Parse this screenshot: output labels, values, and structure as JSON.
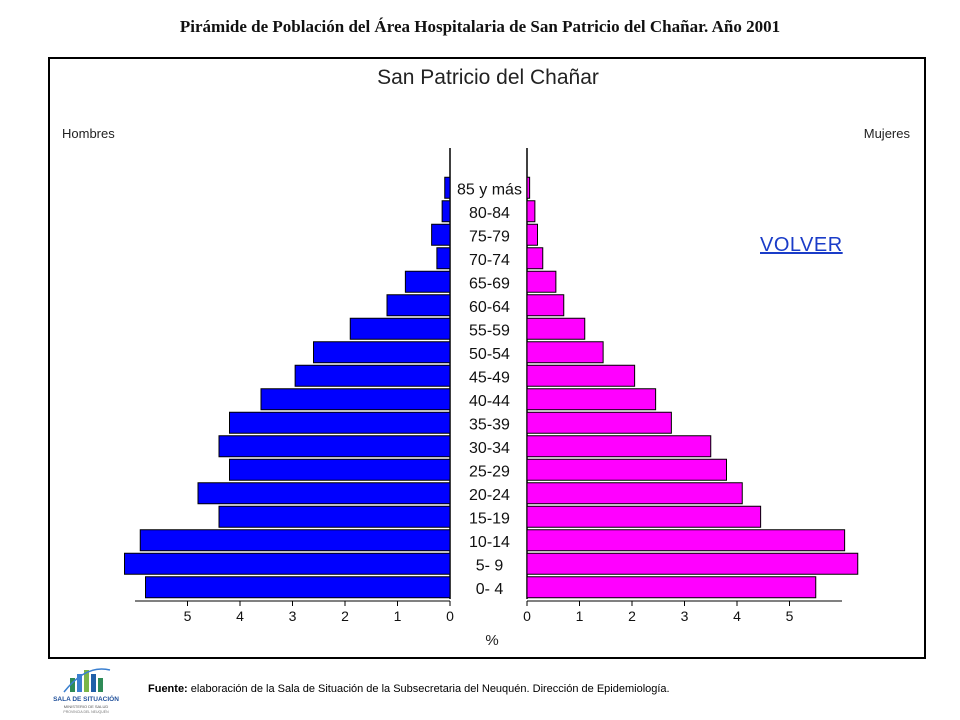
{
  "page": {
    "title": "Pirámide de Población del Área Hospitalaria de San Patricio del Chañar. Año 2001",
    "volver_label": "VOLVER",
    "footer_label": "Fuente:",
    "footer_text": " elaboración de la Sala de Situación de la Subsecretaria del Neuquén. Dirección de Epidemiología.",
    "logo": {
      "name": "SALA DE SITUACIÓN",
      "sub1": "MINISTERIO DE SALUD",
      "sub2": "PROVINCIA DEL NEUQUÉN",
      "colors": [
        "#2e8b57",
        "#3a7fd0",
        "#7ab648",
        "#1f5fa8"
      ]
    }
  },
  "chart_data": {
    "type": "bar",
    "title": "San Patricio del Chañar",
    "left_label": "Hombres",
    "right_label": "Mujeres",
    "xlabel": "%",
    "xlim": [
      0,
      6
    ],
    "ticks": [
      "5",
      "4",
      "3",
      "2",
      "1",
      "0",
      "0",
      "1",
      "2",
      "3",
      "4",
      "5"
    ],
    "categories": [
      "85 y más",
      "80-84",
      "75-79",
      "70-74",
      "65-69",
      "60-64",
      "55-59",
      "50-54",
      "45-49",
      "40-44",
      "35-39",
      "30-34",
      "25-29",
      "20-24",
      "15-19",
      "10-14",
      "5- 9",
      "0- 4"
    ],
    "series": [
      {
        "name": "Hombres",
        "color": "#0000ff",
        "values": [
          0.1,
          0.15,
          0.35,
          0.25,
          0.85,
          1.2,
          1.9,
          2.6,
          2.95,
          3.6,
          4.2,
          4.4,
          4.2,
          4.8,
          4.4,
          5.9,
          6.2,
          5.8
        ]
      },
      {
        "name": "Mujeres",
        "color": "#ff00ff",
        "values": [
          0.05,
          0.15,
          0.2,
          0.3,
          0.55,
          0.7,
          1.1,
          1.45,
          2.05,
          2.45,
          2.75,
          3.5,
          3.8,
          4.1,
          4.45,
          6.05,
          6.3,
          5.5
        ]
      }
    ]
  }
}
